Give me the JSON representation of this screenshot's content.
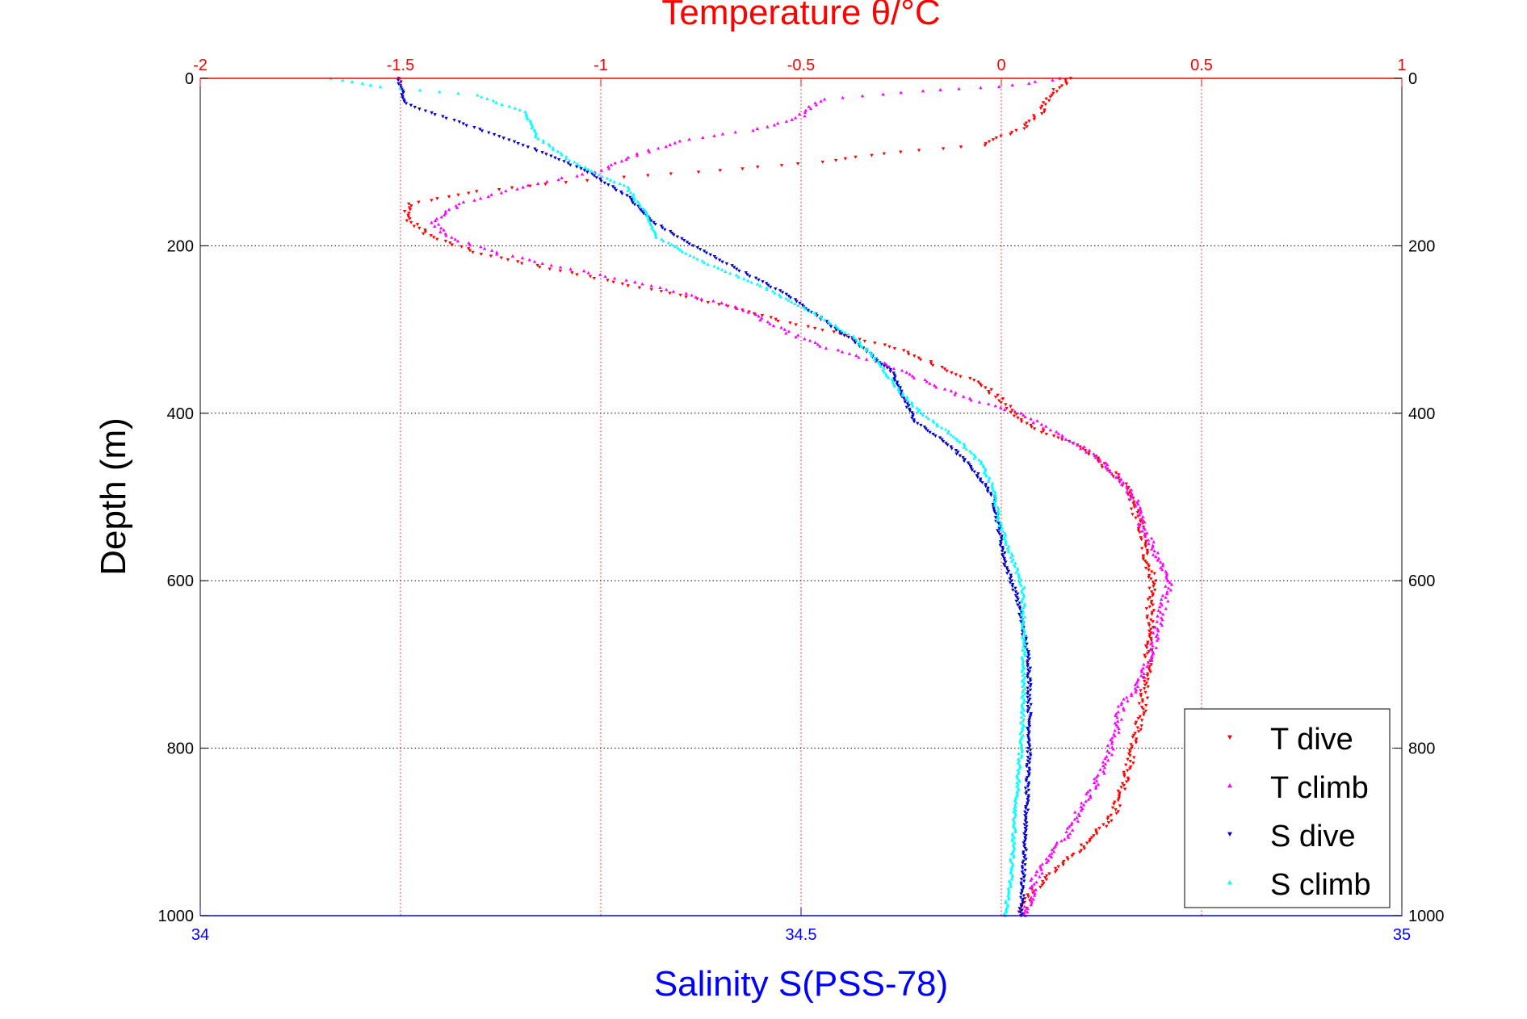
{
  "chart_data": {
    "type": "scatter",
    "title_top_axis": "Temperature θ/°C",
    "xlabel_bottom": "Salinity S(PSS-78)",
    "ylabel": "Depth (m)",
    "colors": {
      "temperature_axis": "#ff0000",
      "salinity_axis": "#0000ff",
      "t_dive": "#ff0000",
      "t_climb": "#ff00ff",
      "s_dive": "#0000cc",
      "s_climb": "#00ffff",
      "grid": "#000000"
    },
    "y_axis": {
      "range": [
        0,
        1000
      ],
      "reversed": true,
      "ticks": [
        0,
        200,
        400,
        600,
        800,
        1000
      ],
      "tick_labels": [
        "0",
        "200",
        "400",
        "600",
        "800",
        "1000"
      ]
    },
    "x_top_axis": {
      "range": [
        -2,
        1
      ],
      "ticks": [
        -2,
        -1.5,
        -1,
        -0.5,
        0,
        0.5,
        1
      ],
      "tick_labels": [
        "-2",
        "-1.5",
        "-1",
        "-0.5",
        "0",
        "0.5",
        "1"
      ]
    },
    "x_bottom_axis": {
      "range": [
        34,
        35
      ],
      "ticks": [
        34,
        34.5,
        35
      ],
      "tick_labels": [
        "34",
        "34.5",
        "35"
      ]
    },
    "grid": true,
    "legend_position": "bottom-right",
    "series": [
      {
        "name": "T dive",
        "axis": "temperature",
        "marker": "triangle-down",
        "points": [
          [
            0.17,
            0
          ],
          [
            0.12,
            20
          ],
          [
            0.1,
            40
          ],
          [
            0.05,
            60
          ],
          [
            -0.05,
            80
          ],
          [
            -0.3,
            90
          ],
          [
            -0.45,
            100
          ],
          [
            -0.7,
            110
          ],
          [
            -1.0,
            120
          ],
          [
            -1.3,
            135
          ],
          [
            -1.48,
            150
          ],
          [
            -1.48,
            170
          ],
          [
            -1.42,
            190
          ],
          [
            -1.3,
            210
          ],
          [
            -1.1,
            230
          ],
          [
            -0.9,
            250
          ],
          [
            -0.7,
            270
          ],
          [
            -0.55,
            290
          ],
          [
            -0.4,
            305
          ],
          [
            -0.25,
            325
          ],
          [
            -0.15,
            345
          ],
          [
            -0.05,
            365
          ],
          [
            0.0,
            385
          ],
          [
            0.05,
            410
          ],
          [
            0.12,
            425
          ],
          [
            0.2,
            440
          ],
          [
            0.25,
            460
          ],
          [
            0.3,
            480
          ],
          [
            0.33,
            510
          ],
          [
            0.35,
            540
          ],
          [
            0.36,
            570
          ],
          [
            0.38,
            600
          ],
          [
            0.37,
            640
          ],
          [
            0.37,
            680
          ],
          [
            0.36,
            720
          ],
          [
            0.35,
            760
          ],
          [
            0.33,
            800
          ],
          [
            0.31,
            840
          ],
          [
            0.28,
            880
          ],
          [
            0.2,
            920
          ],
          [
            0.12,
            950
          ],
          [
            0.07,
            975
          ],
          [
            0.05,
            1000
          ]
        ]
      },
      {
        "name": "T climb",
        "axis": "temperature",
        "marker": "triangle-up",
        "points": [
          [
            0.15,
            0
          ],
          [
            0.0,
            10
          ],
          [
            -0.2,
            15
          ],
          [
            -0.45,
            25
          ],
          [
            -0.5,
            45
          ],
          [
            -0.6,
            60
          ],
          [
            -0.8,
            75
          ],
          [
            -0.9,
            90
          ],
          [
            -1.0,
            110
          ],
          [
            -1.2,
            130
          ],
          [
            -1.35,
            150
          ],
          [
            -1.42,
            170
          ],
          [
            -1.38,
            190
          ],
          [
            -1.25,
            210
          ],
          [
            -1.05,
            230
          ],
          [
            -0.85,
            250
          ],
          [
            -0.65,
            275
          ],
          [
            -0.55,
            300
          ],
          [
            -0.45,
            320
          ],
          [
            -0.3,
            340
          ],
          [
            -0.2,
            360
          ],
          [
            -0.1,
            380
          ],
          [
            0.05,
            400
          ],
          [
            0.12,
            420
          ],
          [
            0.2,
            440
          ],
          [
            0.28,
            470
          ],
          [
            0.33,
            500
          ],
          [
            0.35,
            530
          ],
          [
            0.38,
            560
          ],
          [
            0.42,
            600
          ],
          [
            0.4,
            640
          ],
          [
            0.38,
            680
          ],
          [
            0.35,
            720
          ],
          [
            0.3,
            750
          ],
          [
            0.28,
            790
          ],
          [
            0.25,
            830
          ],
          [
            0.2,
            870
          ],
          [
            0.17,
            900
          ],
          [
            0.12,
            930
          ],
          [
            0.08,
            960
          ],
          [
            0.07,
            985
          ],
          [
            0.06,
            1000
          ]
        ]
      },
      {
        "name": "S dive",
        "axis": "salinity",
        "marker": "triangle-down",
        "points": [
          [
            34.165,
            0
          ],
          [
            34.17,
            30
          ],
          [
            34.21,
            50
          ],
          [
            34.27,
            80
          ],
          [
            34.32,
            110
          ],
          [
            34.355,
            140
          ],
          [
            34.375,
            170
          ],
          [
            34.41,
            200
          ],
          [
            34.45,
            230
          ],
          [
            34.49,
            260
          ],
          [
            34.52,
            290
          ],
          [
            34.55,
            320
          ],
          [
            34.575,
            350
          ],
          [
            34.585,
            380
          ],
          [
            34.595,
            410
          ],
          [
            34.625,
            440
          ],
          [
            34.645,
            470
          ],
          [
            34.66,
            500
          ],
          [
            34.665,
            540
          ],
          [
            34.67,
            580
          ],
          [
            34.68,
            620
          ],
          [
            34.685,
            660
          ],
          [
            34.69,
            700
          ],
          [
            34.69,
            750
          ],
          [
            34.69,
            800
          ],
          [
            34.688,
            850
          ],
          [
            34.687,
            900
          ],
          [
            34.685,
            950
          ],
          [
            34.683,
            1000
          ]
        ]
      },
      {
        "name": "S climb",
        "axis": "salinity",
        "marker": "triangle-up",
        "points": [
          [
            34.11,
            0
          ],
          [
            34.15,
            10
          ],
          [
            34.23,
            20
          ],
          [
            34.27,
            40
          ],
          [
            34.28,
            70
          ],
          [
            34.31,
            100
          ],
          [
            34.355,
            130
          ],
          [
            34.37,
            160
          ],
          [
            34.38,
            190
          ],
          [
            34.42,
            220
          ],
          [
            34.47,
            250
          ],
          [
            34.51,
            280
          ],
          [
            34.545,
            310
          ],
          [
            34.565,
            340
          ],
          [
            34.58,
            370
          ],
          [
            34.6,
            400
          ],
          [
            34.63,
            430
          ],
          [
            34.65,
            460
          ],
          [
            34.66,
            490
          ],
          [
            34.665,
            530
          ],
          [
            34.675,
            570
          ],
          [
            34.685,
            610
          ],
          [
            34.685,
            650
          ],
          [
            34.685,
            700
          ],
          [
            34.685,
            750
          ],
          [
            34.683,
            800
          ],
          [
            34.68,
            850
          ],
          [
            34.677,
            900
          ],
          [
            34.675,
            950
          ],
          [
            34.67,
            1000
          ]
        ]
      }
    ]
  }
}
